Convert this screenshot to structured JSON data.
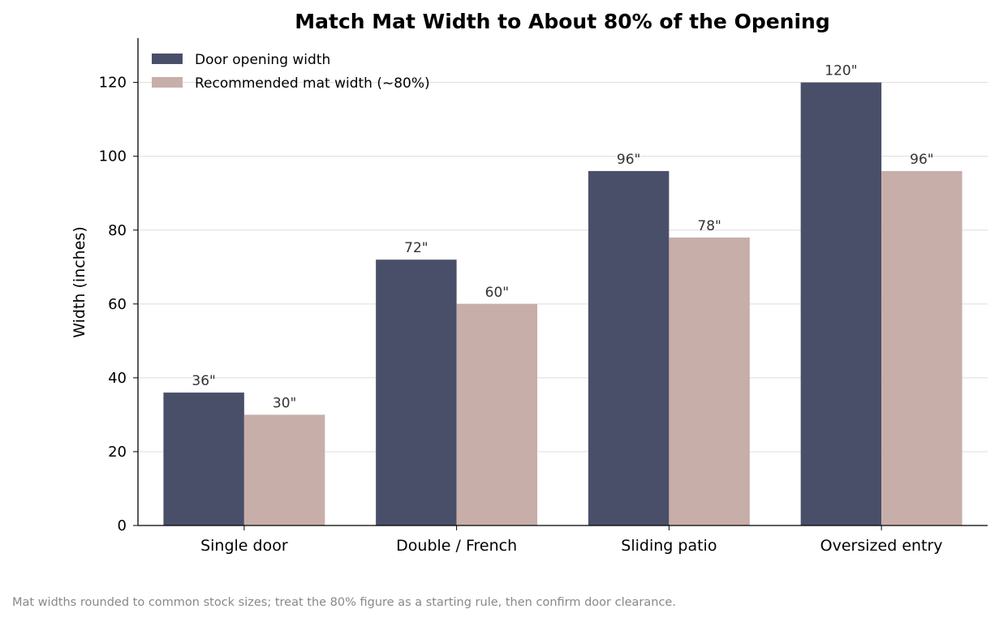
{
  "chart_data": {
    "type": "bar",
    "title": "Match Mat Width to About 80% of the Opening",
    "xlabel": "",
    "ylabel": "Width (inches)",
    "categories": [
      "Single door",
      "Double / French",
      "Sliding patio",
      "Oversized entry"
    ],
    "series": [
      {
        "name": "Door opening width",
        "values": [
          36,
          72,
          96,
          120
        ],
        "labels": [
          "36\"",
          "72\"",
          "96\"",
          "120\""
        ],
        "color": "#4a4f69"
      },
      {
        "name": "Recommended mat width (~80%)",
        "values": [
          30,
          60,
          78,
          96
        ],
        "labels": [
          "30\"",
          "60\"",
          "78\"",
          "96\""
        ],
        "color": "#c8aea8"
      }
    ],
    "ylim": [
      0,
      132
    ],
    "yticks": [
      0,
      20,
      40,
      60,
      80,
      100,
      120
    ],
    "grid": "horizontal",
    "legend_position": "top-left"
  },
  "footnote": "Mat widths rounded to common stock sizes; treat the 80% figure as a starting rule, then confirm door clearance."
}
